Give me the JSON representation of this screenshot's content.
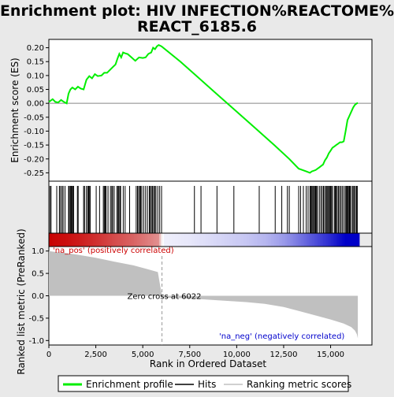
{
  "chart_data": {
    "type": "line",
    "title": "Enrichment plot: HIV INFECTION%REACTOME%\nREACT_6185.6",
    "xlabel": "Rank in Ordered Dataset",
    "es_panel": {
      "ylabel": "Enrichment score (ES)",
      "ylim": [
        -0.28,
        0.23
      ],
      "yticks": [
        -0.25,
        -0.2,
        -0.15,
        -0.1,
        -0.05,
        0.0,
        0.05,
        0.1,
        0.15,
        0.2
      ],
      "ytick_labels": [
        "-0.25",
        "-0.20",
        "-0.15",
        "-0.10",
        "-0.05",
        "0.00",
        "0.05",
        "0.10",
        "0.15",
        "0.20"
      ]
    },
    "rank_panel": {
      "ylabel": "Ranked list metric (PreRanked)",
      "ylim": [
        -1.1,
        1.1
      ],
      "yticks": [
        -1.0,
        -0.5,
        0.0,
        0.5,
        1.0
      ],
      "ytick_labels": [
        "-1.0",
        "-0.5",
        "0.0",
        "0.5",
        "1.0"
      ],
      "pos_label": "'na_pos' (positively correlated)",
      "neg_label": "'na_neg' (negatively correlated)",
      "zero_cross_label": "Zero cross at 6022",
      "zero_cross": 6022,
      "metric_curve": [
        [
          0,
          1.0
        ],
        [
          300,
          0.98
        ],
        [
          1000,
          0.95
        ],
        [
          1500,
          0.92
        ],
        [
          2500,
          0.85
        ],
        [
          3500,
          0.76
        ],
        [
          4500,
          0.68
        ],
        [
          5200,
          0.6
        ],
        [
          5800,
          0.53
        ],
        [
          6022,
          0.0
        ],
        [
          6100,
          -0.04
        ],
        [
          7500,
          -0.06
        ],
        [
          9000,
          -0.1
        ],
        [
          10500,
          -0.14
        ],
        [
          11500,
          -0.18
        ],
        [
          12500,
          -0.25
        ],
        [
          13500,
          -0.36
        ],
        [
          14300,
          -0.45
        ],
        [
          15000,
          -0.53
        ],
        [
          15700,
          -0.62
        ],
        [
          16100,
          -0.7
        ],
        [
          16300,
          -0.78
        ],
        [
          16400,
          -0.86
        ],
        [
          16450,
          -0.95
        ]
      ]
    },
    "xlim": [
      0,
      17200
    ],
    "xticks": [
      0,
      2500,
      5000,
      7500,
      10000,
      12500,
      15000
    ],
    "xtick_labels": [
      "0",
      "2,500",
      "5,000",
      "7,500",
      "10,000",
      "12,500",
      "15,000"
    ],
    "series": [
      {
        "name": "Enrichment profile",
        "x": [
          0,
          200,
          350,
          500,
          650,
          800,
          950,
          1050,
          1150,
          1250,
          1400,
          1550,
          1700,
          1850,
          2000,
          2150,
          2300,
          2450,
          2600,
          2800,
          2950,
          3100,
          3250,
          3400,
          3550,
          3650,
          3750,
          3850,
          3950,
          4050,
          4200,
          4400,
          4600,
          4800,
          5000,
          5150,
          5300,
          5450,
          5550,
          5650,
          5750,
          5850,
          6000,
          7000,
          8000,
          9000,
          10000,
          11000,
          12000,
          12800,
          13300,
          13700,
          13900,
          14000,
          14200,
          14400,
          14600,
          14700,
          14800,
          14900,
          15000,
          15100,
          15200,
          15300,
          15400,
          15500,
          15600,
          15700,
          15800,
          15850,
          15900,
          16000,
          16100,
          16200,
          16300,
          16400,
          16450
        ],
        "y": [
          0.005,
          0.015,
          0.005,
          0.003,
          0.012,
          0.005,
          0.0,
          0.035,
          0.05,
          0.057,
          0.05,
          0.06,
          0.053,
          0.05,
          0.085,
          0.098,
          0.09,
          0.105,
          0.098,
          0.1,
          0.11,
          0.11,
          0.12,
          0.13,
          0.14,
          0.16,
          0.178,
          0.165,
          0.183,
          0.18,
          0.177,
          0.165,
          0.153,
          0.165,
          0.163,
          0.165,
          0.178,
          0.183,
          0.2,
          0.195,
          0.205,
          0.21,
          0.205,
          0.15,
          0.09,
          0.03,
          -0.03,
          -0.09,
          -0.15,
          -0.2,
          -0.235,
          -0.245,
          -0.25,
          -0.245,
          -0.24,
          -0.23,
          -0.22,
          -0.205,
          -0.195,
          -0.18,
          -0.17,
          -0.16,
          -0.155,
          -0.15,
          -0.145,
          -0.14,
          -0.14,
          -0.137,
          -0.1,
          -0.08,
          -0.06,
          -0.045,
          -0.03,
          -0.015,
          -0.005,
          0.0,
          0.002
        ]
      }
    ],
    "hits": [
      60,
      120,
      420,
      560,
      620,
      700,
      760,
      860,
      1050,
      1090,
      1150,
      1190,
      1230,
      1270,
      1320,
      1520,
      1560,
      1850,
      1900,
      2000,
      2070,
      2120,
      2150,
      2200,
      2520,
      2700,
      2900,
      2950,
      3000,
      3050,
      3150,
      3280,
      3350,
      3400,
      3480,
      3620,
      3680,
      3720,
      3780,
      3820,
      3960,
      4060,
      4300,
      4650,
      4720,
      4780,
      4840,
      4890,
      4950,
      5050,
      5150,
      5250,
      5350,
      5400,
      5460,
      5520,
      5580,
      5640,
      5700,
      5800,
      5900,
      6000,
      7750,
      8100,
      8950,
      9850,
      11200,
      12050,
      12400,
      12700,
      12800,
      13300,
      13400,
      13550,
      13700,
      13800,
      13900,
      13950,
      14000,
      14050,
      14100,
      14150,
      14200,
      14250,
      14300,
      14400,
      14480,
      14550,
      14620,
      14680,
      14750,
      14800,
      14850,
      14900,
      14950,
      15000,
      15050,
      15100,
      15200,
      15250,
      15300,
      15350,
      15420,
      15480,
      15550,
      15620,
      15700,
      15780,
      15830,
      15870,
      15910,
      15950,
      16000,
      16030,
      16060,
      16150,
      16200,
      16260,
      16320,
      16380,
      16420
    ],
    "legend": {
      "placement": "bottom",
      "items": [
        {
          "label": "Enrichment profile",
          "color": "#00ee00"
        },
        {
          "label": "Hits",
          "color": "#000000"
        },
        {
          "label": "Ranking metric scores",
          "color": "#c0c0c0"
        }
      ]
    },
    "colors": {
      "profile": "#00ee00",
      "pos_label": "#cc0000",
      "neg_label": "#0000cc",
      "metric_fill": "#c0c0c0"
    }
  }
}
